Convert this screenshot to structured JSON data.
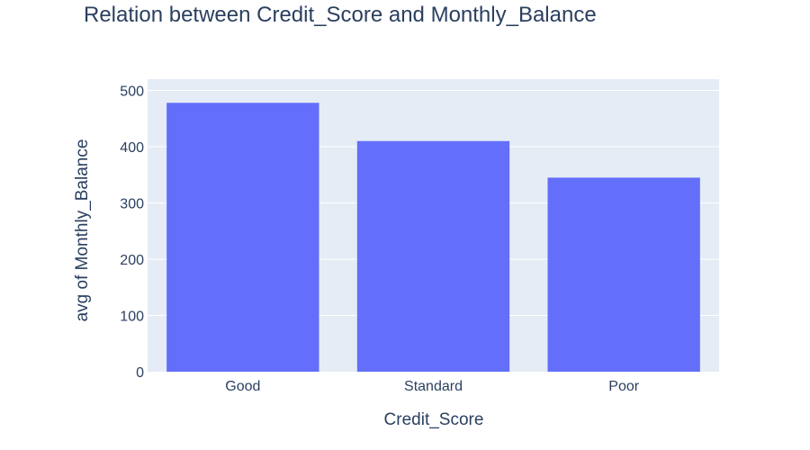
{
  "chart_data": {
    "type": "bar",
    "title": "Relation between Credit_Score and Monthly_Balance",
    "xlabel": "Credit_Score",
    "ylabel": "avg of Monthly_Balance",
    "categories": [
      "Good",
      "Standard",
      "Poor"
    ],
    "values": [
      478,
      410,
      345
    ],
    "ylim": [
      0,
      520
    ],
    "yticks": [
      0,
      100,
      200,
      300,
      400,
      500
    ],
    "grid": true,
    "legend": "none",
    "colors": {
      "bar": "#636efa",
      "plot_background": "#e5ecf6",
      "gridline": "#ffffff",
      "text": "#2a3f5f"
    }
  }
}
